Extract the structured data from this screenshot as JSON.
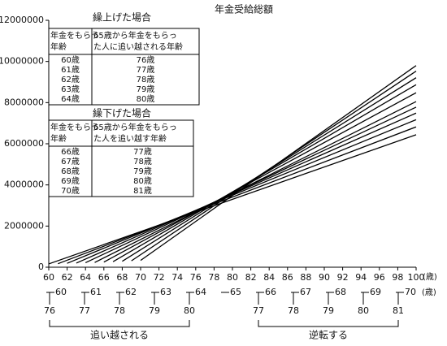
{
  "chart_data": {
    "type": "line",
    "title": "年金受給総額",
    "xlim": [
      60,
      100
    ],
    "xticks": [
      60,
      62,
      64,
      66,
      68,
      70,
      72,
      74,
      76,
      78,
      80,
      82,
      84,
      86,
      88,
      90,
      92,
      94,
      96,
      98,
      100
    ],
    "x_unit": "(歳)",
    "ylim": [
      0,
      12000000
    ],
    "yticks": [
      0,
      2000000,
      4000000,
      6000000,
      8000000,
      10000000,
      12000000
    ],
    "series": [
      {
        "color": "#000000",
        "x": [
          60,
          100
        ],
        "values": [
          160000,
          6440000
        ]
      },
      {
        "color": "#000000",
        "x": [
          61,
          100
        ],
        "values": [
          170000,
          6820000
        ]
      },
      {
        "color": "#000000",
        "x": [
          62,
          100
        ],
        "values": [
          190000,
          7170000
        ]
      },
      {
        "color": "#000000",
        "x": [
          63,
          100
        ],
        "values": [
          200000,
          7490000
        ]
      },
      {
        "color": "#000000",
        "x": [
          64,
          100
        ],
        "values": [
          220000,
          7780000
        ]
      },
      {
        "color": "#000000",
        "x": [
          65,
          100
        ],
        "values": [
          230000,
          8050000
        ]
      },
      {
        "color": "#000000",
        "x": [
          66,
          100
        ],
        "values": [
          250000,
          8480000
        ]
      },
      {
        "color": "#000000",
        "x": [
          67,
          100
        ],
        "values": [
          270000,
          8870000
        ]
      },
      {
        "color": "#000000",
        "x": [
          68,
          100
        ],
        "values": [
          290000,
          9210000
        ]
      },
      {
        "color": "#000000",
        "x": [
          69,
          100
        ],
        "values": [
          310000,
          9530000
        ]
      },
      {
        "color": "#000000",
        "x": [
          70,
          100
        ],
        "values": [
          330000,
          9800000
        ]
      }
    ],
    "tables": [
      {
        "title": "繰上げた場合",
        "headers": [
          [
            "年金をもらう",
            "年齢"
          ],
          [
            "65歳から年金をもらっ",
            "た人に追い越される年齢"
          ]
        ],
        "rows": [
          [
            "60歳",
            "76歳"
          ],
          [
            "61歳",
            "77歳"
          ],
          [
            "62歳",
            "78歳"
          ],
          [
            "63歳",
            "79歳"
          ],
          [
            "64歳",
            "80歳"
          ]
        ]
      },
      {
        "title": "繰下げた場合",
        "headers": [
          [
            "年金をもらう",
            "年齢"
          ],
          [
            "65歳から年金をもらっ",
            "た人を追い越す年齢"
          ]
        ],
        "rows": [
          [
            "66歳",
            "77歳"
          ],
          [
            "67歳",
            "78歳"
          ],
          [
            "68歳",
            "79歳"
          ],
          [
            "69歳",
            "80歳"
          ],
          [
            "70歳",
            "81歳"
          ]
        ]
      }
    ],
    "comparison": {
      "start_ages": [
        60,
        61,
        62,
        63,
        64,
        65,
        66,
        67,
        68,
        69,
        70
      ],
      "unit": "(歳)",
      "early_ages": [
        76,
        77,
        78,
        79,
        80
      ],
      "late_ages": [
        77,
        78,
        79,
        80,
        81
      ],
      "early_label": "追い越される",
      "late_label": "逆転する"
    }
  }
}
